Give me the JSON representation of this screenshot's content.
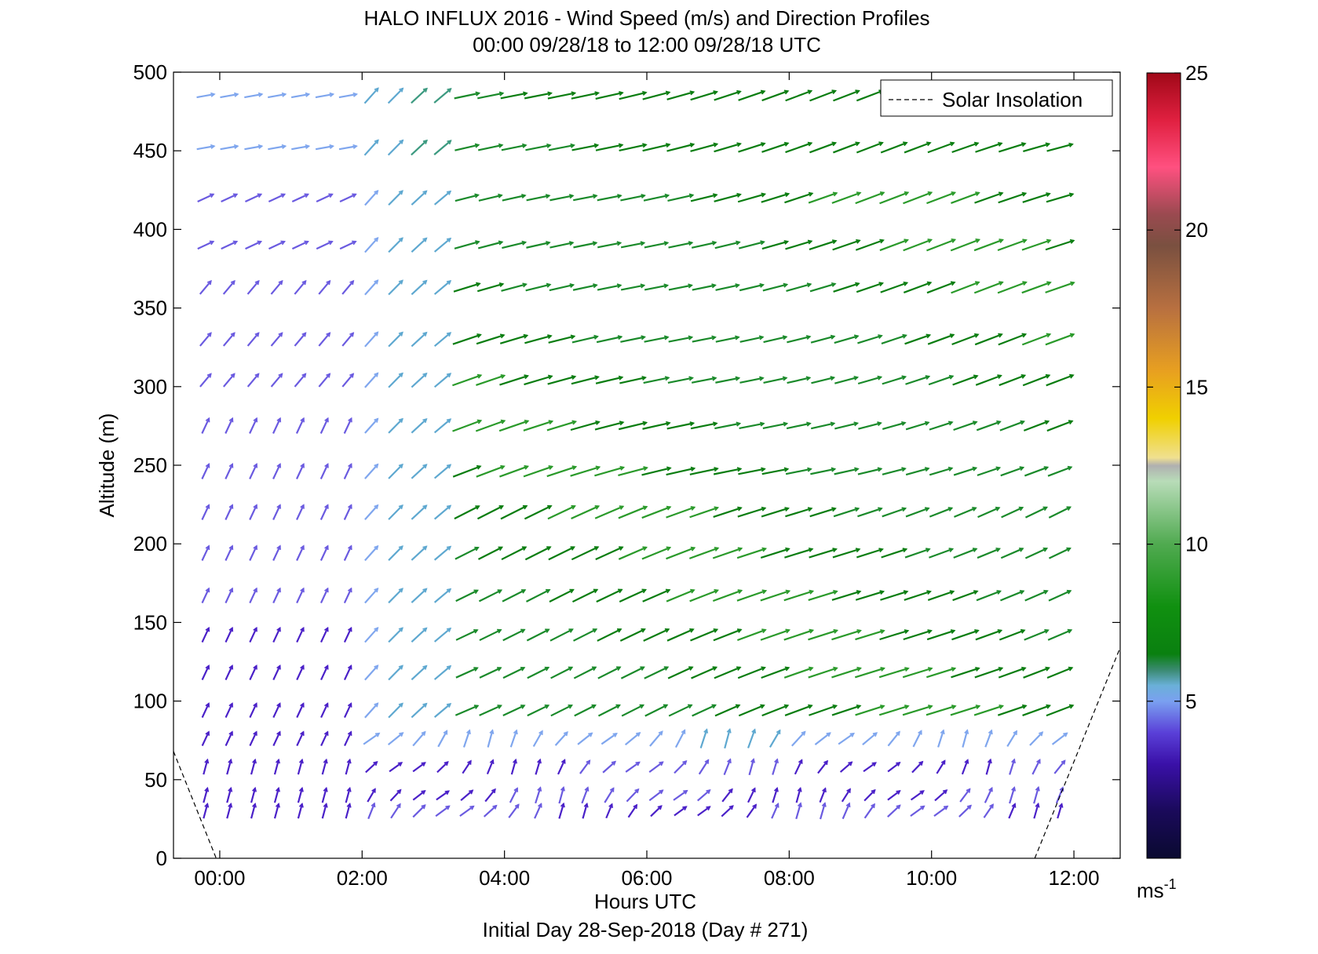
{
  "chart_data": {
    "type": "scatter",
    "title": "HALO INFLUX 2016 - Wind Speed (m/s) and Direction Profiles",
    "subtitle": "00:00 09/28/18 to 12:00 09/28/18  UTC",
    "xlabel": "Hours UTC",
    "xlabel2": "Initial Day 28-Sep-2018 (Day # 271)",
    "ylabel": "Altitude (m)",
    "xlim": [
      -0.65,
      12.65
    ],
    "ylim": [
      0,
      500
    ],
    "x_ticks": [
      0,
      2,
      4,
      6,
      8,
      10,
      12
    ],
    "x_tick_labels": [
      "00:00",
      "02:00",
      "04:00",
      "06:00",
      "08:00",
      "10:00",
      "12:00"
    ],
    "y_ticks": [
      0,
      50,
      100,
      150,
      200,
      250,
      300,
      350,
      400,
      450,
      500
    ],
    "y_tick_labels": [
      "0",
      "50",
      "100",
      "150",
      "200",
      "250",
      "300",
      "350",
      "400",
      "450",
      "500"
    ],
    "grid": false,
    "colorbar": {
      "min": 0,
      "max": 25,
      "ticks": [
        5,
        10,
        15,
        20,
        25
      ],
      "tick_labels": [
        "5",
        "10",
        "15",
        "20",
        "25"
      ],
      "unit_label": "ms",
      "unit_exponent": "-1"
    },
    "legend": {
      "entries": [
        "Solar Insolation"
      ],
      "placement": "top-right"
    },
    "solar_insolation": [
      {
        "x": -0.65,
        "y": 68
      },
      {
        "x": -0.05,
        "y": 0
      },
      {
        "x": 11.45,
        "y": 0
      },
      {
        "x": 12.65,
        "y": 134
      }
    ],
    "wind_vectors": {
      "times_h": [
        -0.2,
        0.13,
        0.47,
        0.8,
        1.13,
        1.47,
        1.8,
        2.13,
        2.47,
        2.8,
        3.13,
        3.47,
        3.8,
        4.13,
        4.47,
        4.8,
        5.13,
        5.47,
        5.8,
        6.13,
        6.47,
        6.8,
        7.13,
        7.47,
        7.8,
        8.13,
        8.47,
        8.8,
        9.13,
        9.47,
        9.8,
        10.13,
        10.47,
        10.8,
        11.13,
        11.47,
        11.8
      ],
      "altitudes_m": [
        30,
        40,
        58,
        76,
        94,
        118,
        142,
        167,
        194,
        220,
        246,
        275,
        304,
        330,
        363,
        390,
        420,
        452,
        485
      ],
      "note_regions": [
        {
          "t0": -0.2,
          "t1": 1.8,
          "alt0": 30,
          "alt1": 500,
          "speed": 3.0,
          "direction_deg": 200
        },
        {
          "t0": 1.8,
          "t1": 3.5,
          "alt0": 58,
          "alt1": 500,
          "speed": 5.0,
          "direction_deg": 225
        },
        {
          "t0": 3.5,
          "t1": 12,
          "alt0": 94,
          "alt1": 500,
          "speed": 8.5,
          "direction_deg": 250
        },
        {
          "t0": 2.0,
          "t1": 12,
          "alt0": 30,
          "alt1": 90,
          "speed": 3.5,
          "direction_deg": 230
        }
      ]
    }
  }
}
